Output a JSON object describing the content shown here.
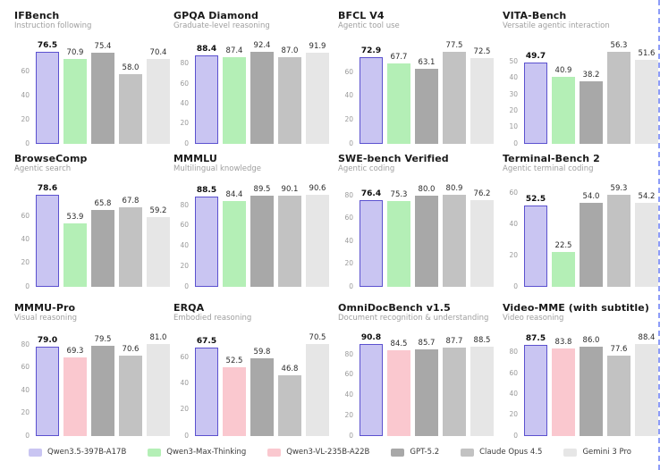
{
  "page": {
    "background": "#ffffff"
  },
  "palette": {
    "qwen35": {
      "fill": "#c9c5f2",
      "stroke": "#5b51cf"
    },
    "qwen3max": {
      "fill": "#b4efb6",
      "stroke": null
    },
    "qwen3vl": {
      "fill": "#fac8cf",
      "stroke": null
    },
    "gpt52": {
      "fill": "#a8a8a8",
      "stroke": null
    },
    "opus45": {
      "fill": "#c2c2c2",
      "stroke": null
    },
    "gemini3": {
      "fill": "#e6e6e6",
      "stroke": null
    }
  },
  "legend": [
    {
      "label": "Qwen3.5-397B-A17B",
      "color_key": "qwen35"
    },
    {
      "label": "Qwen3-Max-Thinking",
      "color_key": "qwen3max"
    },
    {
      "label": "Qwen3-VL-235B-A22B",
      "color_key": "qwen3vl"
    },
    {
      "label": "GPT-5.2",
      "color_key": "gpt52"
    },
    {
      "label": "Claude Opus 4.5",
      "color_key": "opus45"
    },
    {
      "label": "Gemini 3 Pro",
      "color_key": "gemini3"
    }
  ],
  "chart_data": [
    {
      "type": "bar",
      "title": "IFBench",
      "subtitle": "Instruction following",
      "categories": [
        "Qwen3.5-397B-A17B",
        "Qwen3-Max-Thinking",
        "GPT-5.2",
        "Claude Opus 4.5",
        "Gemini 3 Pro"
      ],
      "color_keys": [
        "qwen35",
        "qwen3max",
        "gpt52",
        "opus45",
        "gemini3"
      ],
      "values": [
        76.5,
        70.9,
        75.4,
        58.0,
        70.4
      ],
      "labels": [
        "76.5",
        "70.9",
        "75.4",
        "58.0",
        "70.4"
      ],
      "ticks": [
        0,
        20,
        40,
        60
      ],
      "ylim": [
        0,
        76.5
      ],
      "legend_position": "none",
      "grid": false
    },
    {
      "type": "bar",
      "title": "GPQA Diamond",
      "subtitle": "Graduate-level reasoning",
      "categories": [
        "Qwen3.5-397B-A17B",
        "Qwen3-Max-Thinking",
        "GPT-5.2",
        "Claude Opus 4.5",
        "Gemini 3 Pro"
      ],
      "color_keys": [
        "qwen35",
        "qwen3max",
        "gpt52",
        "opus45",
        "gemini3"
      ],
      "values": [
        88.4,
        87.4,
        92.4,
        87.0,
        91.9
      ],
      "labels": [
        "88.4",
        "87.4",
        "92.4",
        "87.0",
        "91.9"
      ],
      "ticks": [
        0,
        20,
        40,
        60,
        80
      ],
      "ylim": [
        0,
        92.4
      ],
      "legend_position": "none",
      "grid": false
    },
    {
      "type": "bar",
      "title": "BFCL V4",
      "subtitle": "Agentic tool use",
      "categories": [
        "Qwen3.5-397B-A17B",
        "Qwen3-Max-Thinking",
        "GPT-5.2",
        "Claude Opus 4.5",
        "Gemini 3 Pro"
      ],
      "color_keys": [
        "qwen35",
        "qwen3max",
        "gpt52",
        "opus45",
        "gemini3"
      ],
      "values": [
        72.9,
        67.7,
        63.1,
        77.5,
        72.5
      ],
      "labels": [
        "72.9",
        "67.7",
        "63.1",
        "77.5",
        "72.5"
      ],
      "ticks": [
        0,
        20,
        40,
        60
      ],
      "ylim": [
        0,
        77.5
      ],
      "legend_position": "none",
      "grid": false
    },
    {
      "type": "bar",
      "title": "VITA-Bench",
      "subtitle": "Versatile agentic interaction",
      "categories": [
        "Qwen3.5-397B-A17B",
        "Qwen3-Max-Thinking",
        "GPT-5.2",
        "Claude Opus 4.5",
        "Gemini 3 Pro"
      ],
      "color_keys": [
        "qwen35",
        "qwen3max",
        "gpt52",
        "opus45",
        "gemini3"
      ],
      "values": [
        49.7,
        40.9,
        38.2,
        56.3,
        51.6
      ],
      "labels": [
        "49.7",
        "40.9",
        "38.2",
        "56.3",
        "51.6"
      ],
      "ticks": [
        0,
        10,
        20,
        30,
        40,
        50
      ],
      "ylim": [
        0,
        56.3
      ],
      "legend_position": "none",
      "grid": false
    },
    {
      "type": "bar",
      "title": "BrowseComp",
      "subtitle": "Agentic search",
      "categories": [
        "Qwen3.5-397B-A17B",
        "Qwen3-Max-Thinking",
        "GPT-5.2",
        "Claude Opus 4.5",
        "Gemini 3 Pro"
      ],
      "color_keys": [
        "qwen35",
        "qwen3max",
        "gpt52",
        "opus45",
        "gemini3"
      ],
      "values": [
        78.6,
        53.9,
        65.8,
        67.8,
        59.2
      ],
      "labels": [
        "78.6",
        "53.9",
        "65.8",
        "67.8",
        "59.2"
      ],
      "ticks": [
        0,
        20,
        40,
        60
      ],
      "ylim": [
        0,
        78.6
      ],
      "legend_position": "none",
      "grid": false
    },
    {
      "type": "bar",
      "title": "MMMLU",
      "subtitle": "Multilingual knowledge",
      "categories": [
        "Qwen3.5-397B-A17B",
        "Qwen3-Max-Thinking",
        "GPT-5.2",
        "Claude Opus 4.5",
        "Gemini 3 Pro"
      ],
      "color_keys": [
        "qwen35",
        "qwen3max",
        "gpt52",
        "opus45",
        "gemini3"
      ],
      "values": [
        88.5,
        84.4,
        89.5,
        90.1,
        90.6
      ],
      "labels": [
        "88.5",
        "84.4",
        "89.5",
        "90.1",
        "90.6"
      ],
      "ticks": [
        0,
        20,
        40,
        60,
        80
      ],
      "ylim": [
        0,
        90.6
      ],
      "legend_position": "none",
      "grid": false
    },
    {
      "type": "bar",
      "title": "SWE-bench Verified",
      "subtitle": "Agentic coding",
      "categories": [
        "Qwen3.5-397B-A17B",
        "Qwen3-Max-Thinking",
        "GPT-5.2",
        "Claude Opus 4.5",
        "Gemini 3 Pro"
      ],
      "color_keys": [
        "qwen35",
        "qwen3max",
        "gpt52",
        "opus45",
        "gemini3"
      ],
      "values": [
        76.4,
        75.3,
        80.0,
        80.9,
        76.2
      ],
      "labels": [
        "76.4",
        "75.3",
        "80.0",
        "80.9",
        "76.2"
      ],
      "ticks": [
        0,
        20,
        40,
        60,
        80
      ],
      "ylim": [
        0,
        80.9
      ],
      "legend_position": "none",
      "grid": false
    },
    {
      "type": "bar",
      "title": "Terminal-Bench 2",
      "subtitle": "Agentic terminal coding",
      "categories": [
        "Qwen3.5-397B-A17B",
        "Qwen3-Max-Thinking",
        "GPT-5.2",
        "Claude Opus 4.5",
        "Gemini 3 Pro"
      ],
      "color_keys": [
        "qwen35",
        "qwen3max",
        "gpt52",
        "opus45",
        "gemini3"
      ],
      "values": [
        52.5,
        22.5,
        54.0,
        59.3,
        54.2
      ],
      "labels": [
        "52.5",
        "22.5",
        "54.0",
        "59.3",
        "54.2"
      ],
      "ticks": [
        0,
        20,
        40,
        60
      ],
      "ylim": [
        0,
        59.3
      ],
      "legend_position": "none",
      "grid": false
    },
    {
      "type": "bar",
      "title": "MMMU-Pro",
      "subtitle": "Visual reasoning",
      "categories": [
        "Qwen3.5-397B-A17B",
        "Qwen3-VL-235B-A22B",
        "GPT-5.2",
        "Claude Opus 4.5",
        "Gemini 3 Pro"
      ],
      "color_keys": [
        "qwen35",
        "qwen3vl",
        "gpt52",
        "opus45",
        "gemini3"
      ],
      "values": [
        79.0,
        69.3,
        79.5,
        70.6,
        81.0
      ],
      "labels": [
        "79.0",
        "69.3",
        "79.5",
        "70.6",
        "81.0"
      ],
      "ticks": [
        0,
        20,
        40,
        60,
        80
      ],
      "ylim": [
        0,
        81.0
      ],
      "legend_position": "none",
      "grid": false
    },
    {
      "type": "bar",
      "title": "ERQA",
      "subtitle": "Embodied reasoning",
      "categories": [
        "Qwen3.5-397B-A17B",
        "Qwen3-VL-235B-A22B",
        "GPT-5.2",
        "Claude Opus 4.5",
        "Gemini 3 Pro"
      ],
      "color_keys": [
        "qwen35",
        "qwen3vl",
        "gpt52",
        "opus45",
        "gemini3"
      ],
      "values": [
        67.5,
        52.5,
        59.8,
        46.8,
        70.5
      ],
      "labels": [
        "67.5",
        "52.5",
        "59.8",
        "46.8",
        "70.5"
      ],
      "ticks": [
        0,
        20,
        40,
        60
      ],
      "ylim": [
        0,
        70.5
      ],
      "legend_position": "none",
      "grid": false
    },
    {
      "type": "bar",
      "title": "OmniDocBench v1.5",
      "subtitle": "Document recognition & understanding",
      "categories": [
        "Qwen3.5-397B-A17B",
        "Qwen3-VL-235B-A22B",
        "GPT-5.2",
        "Claude Opus 4.5",
        "Gemini 3 Pro"
      ],
      "color_keys": [
        "qwen35",
        "qwen3vl",
        "gpt52",
        "opus45",
        "gemini3"
      ],
      "values": [
        90.8,
        84.5,
        85.7,
        87.7,
        88.5
      ],
      "labels": [
        "90.8",
        "84.5",
        "85.7",
        "87.7",
        "88.5"
      ],
      "ticks": [
        0,
        20,
        40,
        60,
        80
      ],
      "ylim": [
        0,
        90.8
      ],
      "legend_position": "none",
      "grid": false
    },
    {
      "type": "bar",
      "title": "Video-MME (with subtitle)",
      "subtitle": "Video reasoning",
      "categories": [
        "Qwen3.5-397B-A17B",
        "Qwen3-VL-235B-A22B",
        "GPT-5.2",
        "Claude Opus 4.5",
        "Gemini 3 Pro"
      ],
      "color_keys": [
        "qwen35",
        "qwen3vl",
        "gpt52",
        "opus45",
        "gemini3"
      ],
      "values": [
        87.5,
        83.8,
        86.0,
        77.6,
        88.4
      ],
      "labels": [
        "87.5",
        "83.8",
        "86.0",
        "77.6",
        "88.4"
      ],
      "ticks": [
        0,
        20,
        40,
        60,
        80
      ],
      "ylim": [
        0,
        88.4
      ],
      "legend_position": "none",
      "grid": false
    }
  ]
}
